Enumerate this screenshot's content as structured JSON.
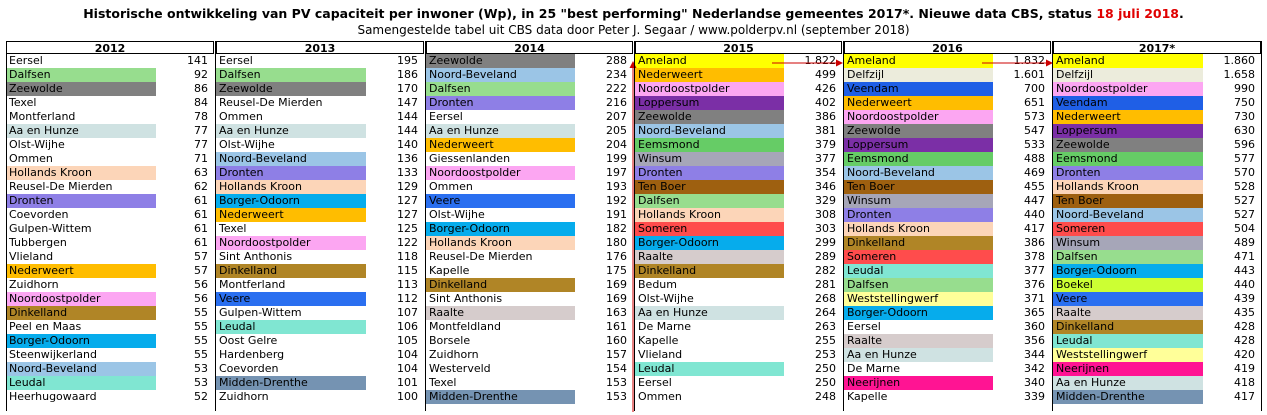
{
  "title": {
    "main": "Historische ontwikkeling van PV capaciteit per inwoner (Wp), in 25 \"best performing\" Nederlandse gemeentes 2017*. Nieuwe data CBS, status ",
    "date": "18 juli 2018",
    "end": "."
  },
  "subtitle": "Samengestelde tabel uit CBS data door Peter J. Segaar / www.polderpv.nl (september 2018)",
  "colors": {
    "Eersel": "#ffffff",
    "Dalfsen": "#97dd8e",
    "Zeewolde": "#808080",
    "Texel": "#ffffff",
    "Montfferland": "#ffffff",
    "Aa en Hunze": "#cfe2e2",
    "Olst-Wijhe": "#ffffff",
    "Ommen": "#ffffff",
    "Hollands Kroon": "#fcd5b8",
    "Reusel-De Mierden": "#ffffff",
    "Dronten": "#8e7fe6",
    "Coevorden": "#ffffff",
    "Gulpen-Wittem": "#ffffff",
    "Tubbergen": "#ffffff",
    "Vlieland": "#ffffff",
    "Nederweert": "#ffbd00",
    "Zuidhorn": "#ffffff",
    "Noordoostpolder": "#fca6f2",
    "Dinkelland": "#b08526",
    "Peel en Maas": "#ffffff",
    "Borger-Odoorn": "#06acec",
    "Steenwijkerland": "#ffffff",
    "Noord-Beveland": "#9bc5e6",
    "Leudal": "#80e6d2",
    "Heerhugowaard": "#ffffff",
    "Sint Anthonis": "#ffffff",
    "Hardenberg": "#ffffff",
    "Midden-Drenthe": "#7593b2",
    "Veere": "#2a6ff0",
    "Giessenlanden": "#ffffff",
    "Kapelle": "#ffffff",
    "Raalte": "#d6cccc",
    "Borsele": "#ffffff",
    "Westerveld": "#ffffff",
    "Ameland": "#ffff00",
    "Loppersum": "#7b2fa6",
    "Eemsmond": "#66cc66",
    "Winsum": "#a6a6b8",
    "Ten Boer": "#9e6010",
    "Someren": "#ff4c4c",
    "Bedum": "#ffffff",
    "De Marne": "#ffffff",
    "Delfzijl": "#ececdc",
    "Veendam": "#1f5fe6",
    "Weststellingwerf": "#ffff99",
    "Neerijnen": "#ff1493",
    "Boekel": "#ccff33"
  },
  "columns": [
    {
      "year": "2012",
      "rows": [
        {
          "name": "Eersel",
          "value": "141"
        },
        {
          "name": "Dalfsen",
          "value": "92"
        },
        {
          "name": "Zeewolde",
          "value": "86"
        },
        {
          "name": "Texel",
          "value": "84"
        },
        {
          "name": "Montferland",
          "value": "78"
        },
        {
          "name": "Aa en Hunze",
          "value": "77"
        },
        {
          "name": "Olst-Wijhe",
          "value": "77"
        },
        {
          "name": "Ommen",
          "value": "71"
        },
        {
          "name": "Hollands Kroon",
          "value": "63"
        },
        {
          "name": "Reusel-De Mierden",
          "value": "62"
        },
        {
          "name": "Dronten",
          "value": "61"
        },
        {
          "name": "Coevorden",
          "value": "61"
        },
        {
          "name": "Gulpen-Wittem",
          "value": "61"
        },
        {
          "name": "Tubbergen",
          "value": "61"
        },
        {
          "name": "Vlieland",
          "value": "57"
        },
        {
          "name": "Nederweert",
          "value": "57"
        },
        {
          "name": "Zuidhorn",
          "value": "56"
        },
        {
          "name": "Noordoostpolder",
          "value": "56"
        },
        {
          "name": "Dinkelland",
          "value": "55"
        },
        {
          "name": "Peel en Maas",
          "value": "55"
        },
        {
          "name": "Borger-Odoorn",
          "value": "55"
        },
        {
          "name": "Steenwijkerland",
          "value": "55"
        },
        {
          "name": "Noord-Beveland",
          "value": "53"
        },
        {
          "name": "Leudal",
          "value": "53"
        },
        {
          "name": "Heerhugowaard",
          "value": "52"
        }
      ]
    },
    {
      "year": "2013",
      "rows": [
        {
          "name": "Eersel",
          "value": "195"
        },
        {
          "name": "Dalfsen",
          "value": "186"
        },
        {
          "name": "Zeewolde",
          "value": "170"
        },
        {
          "name": "Reusel-De Mierden",
          "value": "147"
        },
        {
          "name": "Ommen",
          "value": "144"
        },
        {
          "name": "Aa en Hunze",
          "value": "144"
        },
        {
          "name": "Olst-Wijhe",
          "value": "140"
        },
        {
          "name": "Noord-Beveland",
          "value": "136"
        },
        {
          "name": "Dronten",
          "value": "133"
        },
        {
          "name": "Hollands Kroon",
          "value": "129"
        },
        {
          "name": "Borger-Odoorn",
          "value": "127"
        },
        {
          "name": "Nederweert",
          "value": "127"
        },
        {
          "name": "Texel",
          "value": "125"
        },
        {
          "name": "Noordoostpolder",
          "value": "122"
        },
        {
          "name": "Sint Anthonis",
          "value": "118"
        },
        {
          "name": "Dinkelland",
          "value": "115"
        },
        {
          "name": "Montferland",
          "value": "113"
        },
        {
          "name": "Veere",
          "value": "112"
        },
        {
          "name": "Gulpen-Wittem",
          "value": "107"
        },
        {
          "name": "Leudal",
          "value": "106"
        },
        {
          "name": "Oost Gelre",
          "value": "105"
        },
        {
          "name": "Hardenberg",
          "value": "104"
        },
        {
          "name": "Coevorden",
          "value": "104"
        },
        {
          "name": "Midden-Drenthe",
          "value": "101"
        },
        {
          "name": "Zuidhorn",
          "value": "100"
        }
      ]
    },
    {
      "year": "2014",
      "rows": [
        {
          "name": "Zeewolde",
          "value": "288"
        },
        {
          "name": "Noord-Beveland",
          "value": "234"
        },
        {
          "name": "Dalfsen",
          "value": "222"
        },
        {
          "name": "Dronten",
          "value": "216"
        },
        {
          "name": "Eersel",
          "value": "207"
        },
        {
          "name": "Aa en Hunze",
          "value": "205"
        },
        {
          "name": "Nederweert",
          "value": "204"
        },
        {
          "name": "Giessenlanden",
          "value": "199"
        },
        {
          "name": "Noordoostpolder",
          "value": "197"
        },
        {
          "name": "Ommen",
          "value": "193"
        },
        {
          "name": "Veere",
          "value": "192"
        },
        {
          "name": "Olst-Wijhe",
          "value": "191"
        },
        {
          "name": "Borger-Odoorn",
          "value": "182"
        },
        {
          "name": "Hollands Kroon",
          "value": "180"
        },
        {
          "name": "Reusel-De Mierden",
          "value": "176"
        },
        {
          "name": "Kapelle",
          "value": "175"
        },
        {
          "name": "Dinkelland",
          "value": "169"
        },
        {
          "name": "Sint Anthonis",
          "value": "169"
        },
        {
          "name": "Raalte",
          "value": "163"
        },
        {
          "name": "Montfeldland",
          "value": "161"
        },
        {
          "name": "Borsele",
          "value": "160"
        },
        {
          "name": "Zuidhorn",
          "value": "157"
        },
        {
          "name": "Westerveld",
          "value": "154"
        },
        {
          "name": "Texel",
          "value": "153"
        },
        {
          "name": "Midden-Drenthe",
          "value": "153"
        }
      ]
    },
    {
      "year": "2015",
      "rows": [
        {
          "name": "Ameland",
          "value": "1.822"
        },
        {
          "name": "Nederweert",
          "value": "499"
        },
        {
          "name": "Noordoostpolder",
          "value": "426"
        },
        {
          "name": "Loppersum",
          "value": "402"
        },
        {
          "name": "Zeewolde",
          "value": "386"
        },
        {
          "name": "Noord-Beveland",
          "value": "381"
        },
        {
          "name": "Eemsmond",
          "value": "379"
        },
        {
          "name": "Winsum",
          "value": "377"
        },
        {
          "name": "Dronten",
          "value": "354"
        },
        {
          "name": "Ten Boer",
          "value": "346"
        },
        {
          "name": "Dalfsen",
          "value": "329"
        },
        {
          "name": "Hollands Kroon",
          "value": "308"
        },
        {
          "name": "Someren",
          "value": "303"
        },
        {
          "name": "Borger-Odoorn",
          "value": "299"
        },
        {
          "name": "Raalte",
          "value": "289"
        },
        {
          "name": "Dinkelland",
          "value": "282"
        },
        {
          "name": "Bedum",
          "value": "281"
        },
        {
          "name": "Olst-Wijhe",
          "value": "268"
        },
        {
          "name": "Aa en Hunze",
          "value": "264"
        },
        {
          "name": "De Marne",
          "value": "263"
        },
        {
          "name": "Kapelle",
          "value": "255"
        },
        {
          "name": "Vlieland",
          "value": "253"
        },
        {
          "name": "Leudal",
          "value": "250"
        },
        {
          "name": "Eersel",
          "value": "250"
        },
        {
          "name": "Ommen",
          "value": "248"
        }
      ]
    },
    {
      "year": "2016",
      "rows": [
        {
          "name": "Ameland",
          "value": "1.832"
        },
        {
          "name": "Delfzijl",
          "value": "1.601"
        },
        {
          "name": "Veendam",
          "value": "700"
        },
        {
          "name": "Nederweert",
          "value": "651"
        },
        {
          "name": "Noordoostpolder",
          "value": "573"
        },
        {
          "name": "Zeewolde",
          "value": "547"
        },
        {
          "name": "Loppersum",
          "value": "533"
        },
        {
          "name": "Eemsmond",
          "value": "488"
        },
        {
          "name": "Noord-Beveland",
          "value": "469"
        },
        {
          "name": "Ten Boer",
          "value": "455"
        },
        {
          "name": "Winsum",
          "value": "447"
        },
        {
          "name": "Dronten",
          "value": "440"
        },
        {
          "name": "Hollands Kroon",
          "value": "417"
        },
        {
          "name": "Dinkelland",
          "value": "386"
        },
        {
          "name": "Someren",
          "value": "378"
        },
        {
          "name": "Leudal",
          "value": "377"
        },
        {
          "name": "Dalfsen",
          "value": "376"
        },
        {
          "name": "Weststellingwerf",
          "value": "371"
        },
        {
          "name": "Borger-Odoorn",
          "value": "365"
        },
        {
          "name": "Eersel",
          "value": "360"
        },
        {
          "name": "Raalte",
          "value": "356"
        },
        {
          "name": "Aa en Hunze",
          "value": "344"
        },
        {
          "name": "De Marne",
          "value": "342"
        },
        {
          "name": "Neerijnen",
          "value": "340"
        },
        {
          "name": "Kapelle",
          "value": "339"
        }
      ]
    },
    {
      "year": "2017*",
      "rows": [
        {
          "name": "Ameland",
          "value": "1.860"
        },
        {
          "name": "Delfzijl",
          "value": "1.658"
        },
        {
          "name": "Noordoostpolder",
          "value": "990"
        },
        {
          "name": "Veendam",
          "value": "750"
        },
        {
          "name": "Nederweert",
          "value": "730"
        },
        {
          "name": "Loppersum",
          "value": "630"
        },
        {
          "name": "Zeewolde",
          "value": "596"
        },
        {
          "name": "Eemsmond",
          "value": "577"
        },
        {
          "name": "Dronten",
          "value": "570"
        },
        {
          "name": "Hollands Kroon",
          "value": "528"
        },
        {
          "name": "Ten Boer",
          "value": "527"
        },
        {
          "name": "Noord-Beveland",
          "value": "527"
        },
        {
          "name": "Someren",
          "value": "504"
        },
        {
          "name": "Winsum",
          "value": "489"
        },
        {
          "name": "Dalfsen",
          "value": "471"
        },
        {
          "name": "Borger-Odoorn",
          "value": "443"
        },
        {
          "name": "Boekel",
          "value": "440"
        },
        {
          "name": "Veere",
          "value": "439"
        },
        {
          "name": "Raalte",
          "value": "435"
        },
        {
          "name": "Dinkelland",
          "value": "428"
        },
        {
          "name": "Leudal",
          "value": "428"
        },
        {
          "name": "Weststellingwerf",
          "value": "420"
        },
        {
          "name": "Neerijnen",
          "value": "419"
        },
        {
          "name": "Aa en Hunze",
          "value": "418"
        },
        {
          "name": "Midden-Drenthe",
          "value": "417"
        }
      ]
    }
  ]
}
